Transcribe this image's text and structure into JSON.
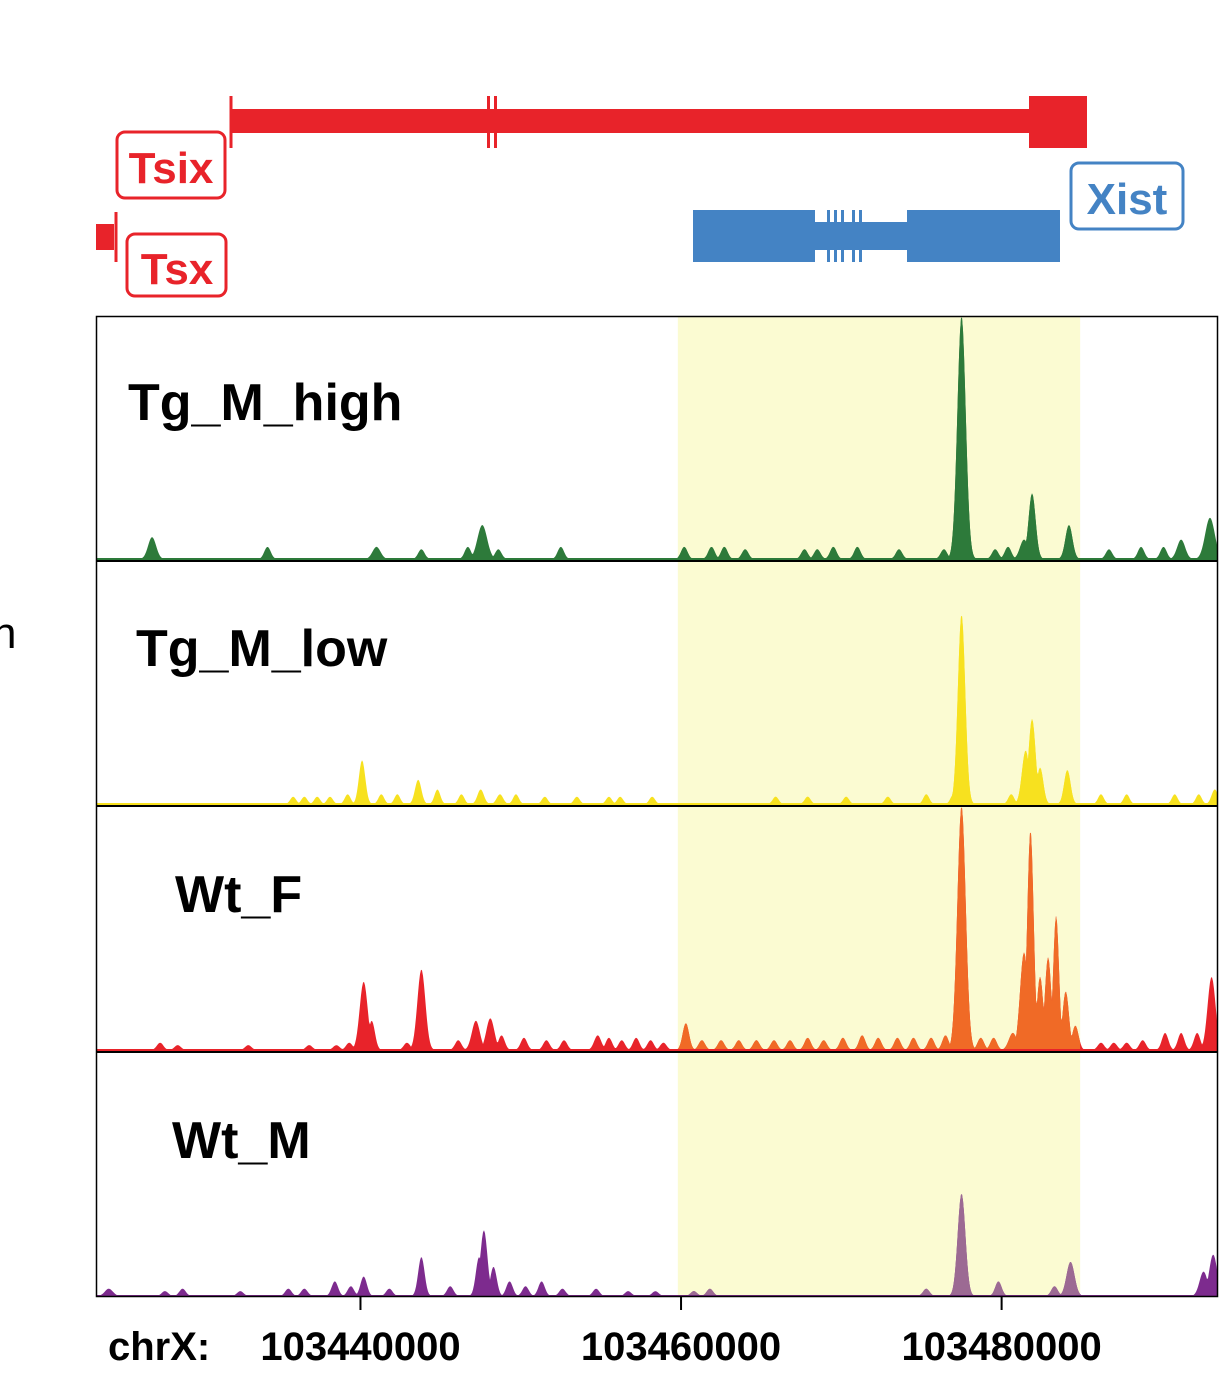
{
  "colors": {
    "tsix": "#e8232a",
    "tsx": "#e8232a",
    "xist": "#4483c4",
    "highlight": "#fbfbd2",
    "tg_m_high": "#2d7a3a",
    "tg_m_high_core": "#4e7a2e",
    "tg_m_low": "#f7e11f",
    "wt_f_out": "#e8232a",
    "wt_f_in": "#f06a26",
    "wt_m_out": "#7d2b8e",
    "wt_m_in": "#9c6a93"
  },
  "genes": [
    {
      "name": "Tsix",
      "label": "Tsix"
    },
    {
      "name": "Tsx",
      "label": "Tsx"
    },
    {
      "name": "Xist",
      "label": "Xist"
    }
  ],
  "edge_glyph": "n",
  "chart_data": {
    "type": "area",
    "xlabel": "chrX:",
    "x_range": [
      103423500,
      103493500
    ],
    "highlight_range": [
      103459800,
      103484900
    ],
    "x_ticks": [
      103440000,
      103460000,
      103480000
    ],
    "x_tick_labels": [
      "103440000",
      "103460000",
      "103480000"
    ],
    "y_range": [
      0,
      1
    ],
    "series": [
      {
        "name": "Tg_M_high",
        "peaks": [
          [
            103427000,
            0.09,
            250
          ],
          [
            103434200,
            0.05,
            200
          ],
          [
            103441000,
            0.05,
            250
          ],
          [
            103443800,
            0.04,
            200
          ],
          [
            103446700,
            0.05,
            200
          ],
          [
            103447600,
            0.14,
            300
          ],
          [
            103448600,
            0.04,
            200
          ],
          [
            103452500,
            0.05,
            200
          ],
          [
            103460200,
            0.05,
            200
          ],
          [
            103461900,
            0.05,
            200
          ],
          [
            103462700,
            0.05,
            200
          ],
          [
            103464000,
            0.04,
            200
          ],
          [
            103467700,
            0.04,
            200
          ],
          [
            103468500,
            0.04,
            200
          ],
          [
            103469500,
            0.05,
            200
          ],
          [
            103471000,
            0.05,
            200
          ],
          [
            103473600,
            0.04,
            200
          ],
          [
            103476400,
            0.04,
            200
          ],
          [
            103477500,
            1.0,
            260
          ],
          [
            103479600,
            0.04,
            200
          ],
          [
            103480400,
            0.05,
            200
          ],
          [
            103481400,
            0.08,
            250
          ],
          [
            103481900,
            0.27,
            220
          ],
          [
            103484200,
            0.14,
            220
          ],
          [
            103486700,
            0.04,
            200
          ],
          [
            103488700,
            0.05,
            200
          ],
          [
            103490100,
            0.05,
            200
          ],
          [
            103491200,
            0.08,
            250
          ],
          [
            103493000,
            0.17,
            300
          ]
        ]
      },
      {
        "name": "Tg_M_low",
        "peaks": [
          [
            103435800,
            0.03,
            180
          ],
          [
            103436500,
            0.03,
            180
          ],
          [
            103437300,
            0.03,
            180
          ],
          [
            103438100,
            0.03,
            180
          ],
          [
            103439200,
            0.04,
            180
          ],
          [
            103440100,
            0.18,
            200
          ],
          [
            103441300,
            0.04,
            180
          ],
          [
            103442300,
            0.04,
            180
          ],
          [
            103443600,
            0.1,
            200
          ],
          [
            103444800,
            0.06,
            180
          ],
          [
            103446300,
            0.04,
            180
          ],
          [
            103447500,
            0.06,
            200
          ],
          [
            103448700,
            0.04,
            200
          ],
          [
            103449700,
            0.04,
            180
          ],
          [
            103451500,
            0.03,
            180
          ],
          [
            103453500,
            0.03,
            180
          ],
          [
            103455500,
            0.03,
            180
          ],
          [
            103456200,
            0.03,
            180
          ],
          [
            103458200,
            0.03,
            180
          ],
          [
            103465900,
            0.03,
            180
          ],
          [
            103467900,
            0.03,
            180
          ],
          [
            103470300,
            0.03,
            180
          ],
          [
            103472900,
            0.03,
            180
          ],
          [
            103475300,
            0.04,
            180
          ],
          [
            103477000,
            0.04,
            180
          ],
          [
            103477500,
            0.78,
            230
          ],
          [
            103480600,
            0.04,
            180
          ],
          [
            103481500,
            0.22,
            230
          ],
          [
            103481900,
            0.35,
            220
          ],
          [
            103482400,
            0.15,
            200
          ],
          [
            103484100,
            0.14,
            200
          ],
          [
            103486200,
            0.04,
            180
          ],
          [
            103487800,
            0.04,
            180
          ],
          [
            103490800,
            0.04,
            180
          ],
          [
            103492300,
            0.04,
            180
          ],
          [
            103493300,
            0.06,
            200
          ]
        ]
      },
      {
        "name": "Wt_F",
        "peaks": [
          [
            103427500,
            0.03,
            200
          ],
          [
            103428600,
            0.02,
            200
          ],
          [
            103433000,
            0.02,
            200
          ],
          [
            103436800,
            0.02,
            200
          ],
          [
            103438500,
            0.02,
            200
          ],
          [
            103439300,
            0.03,
            200
          ],
          [
            103440200,
            0.28,
            250
          ],
          [
            103440700,
            0.12,
            200
          ],
          [
            103442900,
            0.03,
            200
          ],
          [
            103443800,
            0.33,
            250
          ],
          [
            103446100,
            0.04,
            200
          ],
          [
            103447200,
            0.12,
            250
          ],
          [
            103448100,
            0.13,
            250
          ],
          [
            103448800,
            0.06,
            200
          ],
          [
            103450200,
            0.05,
            200
          ],
          [
            103451600,
            0.04,
            200
          ],
          [
            103452700,
            0.04,
            200
          ],
          [
            103454800,
            0.06,
            220
          ],
          [
            103455500,
            0.05,
            200
          ],
          [
            103456300,
            0.04,
            200
          ],
          [
            103457200,
            0.05,
            200
          ],
          [
            103458100,
            0.04,
            200
          ],
          [
            103458900,
            0.03,
            200
          ],
          [
            103460300,
            0.11,
            200
          ],
          [
            103461300,
            0.04,
            200
          ],
          [
            103462500,
            0.04,
            200
          ],
          [
            103463600,
            0.04,
            200
          ],
          [
            103464700,
            0.04,
            200
          ],
          [
            103465800,
            0.04,
            200
          ],
          [
            103466800,
            0.04,
            200
          ],
          [
            103467900,
            0.05,
            200
          ],
          [
            103468900,
            0.04,
            200
          ],
          [
            103470100,
            0.05,
            200
          ],
          [
            103471300,
            0.06,
            200
          ],
          [
            103472300,
            0.05,
            200
          ],
          [
            103473500,
            0.05,
            200
          ],
          [
            103474500,
            0.05,
            200
          ],
          [
            103475600,
            0.05,
            200
          ],
          [
            103476500,
            0.06,
            200
          ],
          [
            103477500,
            1.0,
            260
          ],
          [
            103478700,
            0.05,
            200
          ],
          [
            103479500,
            0.05,
            200
          ],
          [
            103480700,
            0.07,
            250
          ],
          [
            103481400,
            0.4,
            250
          ],
          [
            103481800,
            0.9,
            200
          ],
          [
            103482400,
            0.3,
            200
          ],
          [
            103482900,
            0.38,
            200
          ],
          [
            103483400,
            0.55,
            180
          ],
          [
            103484000,
            0.24,
            200
          ],
          [
            103484600,
            0.1,
            200
          ],
          [
            103486200,
            0.03,
            200
          ],
          [
            103487000,
            0.03,
            200
          ],
          [
            103487800,
            0.03,
            200
          ],
          [
            103488800,
            0.04,
            200
          ],
          [
            103490200,
            0.07,
            200
          ],
          [
            103491200,
            0.07,
            200
          ],
          [
            103492200,
            0.07,
            200
          ],
          [
            103493100,
            0.3,
            250
          ]
        ]
      },
      {
        "name": "Wt_M",
        "peaks": [
          [
            103424300,
            0.03,
            250
          ],
          [
            103427800,
            0.02,
            200
          ],
          [
            103428900,
            0.03,
            200
          ],
          [
            103432500,
            0.02,
            200
          ],
          [
            103435500,
            0.03,
            200
          ],
          [
            103436500,
            0.03,
            200
          ],
          [
            103438400,
            0.06,
            200
          ],
          [
            103439400,
            0.04,
            200
          ],
          [
            103440200,
            0.08,
            200
          ],
          [
            103441800,
            0.03,
            200
          ],
          [
            103443800,
            0.16,
            200
          ],
          [
            103445600,
            0.04,
            200
          ],
          [
            103447400,
            0.16,
            200
          ],
          [
            103447700,
            0.27,
            220
          ],
          [
            103448300,
            0.12,
            200
          ],
          [
            103449300,
            0.06,
            200
          ],
          [
            103450300,
            0.04,
            200
          ],
          [
            103451300,
            0.06,
            200
          ],
          [
            103452600,
            0.03,
            200
          ],
          [
            103454700,
            0.03,
            200
          ],
          [
            103456700,
            0.02,
            200
          ],
          [
            103458400,
            0.02,
            200
          ],
          [
            103460800,
            0.02,
            200
          ],
          [
            103461800,
            0.03,
            200
          ],
          [
            103475300,
            0.03,
            200
          ],
          [
            103477500,
            0.42,
            240
          ],
          [
            103479800,
            0.06,
            200
          ],
          [
            103483300,
            0.04,
            200
          ],
          [
            103484300,
            0.14,
            250
          ],
          [
            103492600,
            0.1,
            250
          ],
          [
            103493200,
            0.17,
            250
          ]
        ]
      }
    ]
  }
}
